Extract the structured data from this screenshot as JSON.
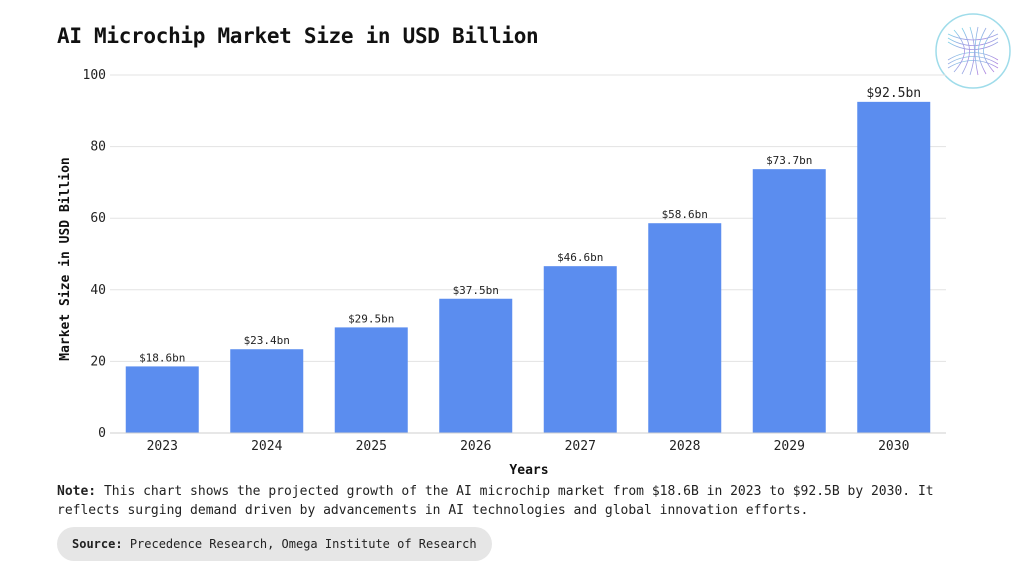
{
  "chart_data": {
    "type": "bar",
    "title": "AI Microchip Market Size in USD Billion",
    "xlabel": "Years",
    "ylabel": "Market Size in USD Billion",
    "categories": [
      "2023",
      "2024",
      "2025",
      "2026",
      "2027",
      "2028",
      "2029",
      "2030"
    ],
    "values": [
      18.6,
      23.4,
      29.5,
      37.5,
      46.6,
      58.6,
      73.7,
      92.5
    ],
    "data_labels": [
      "$18.6bn",
      "$23.4bn",
      "$29.5bn",
      "$37.5bn",
      "$46.6bn",
      "$58.6bn",
      "$73.7bn",
      "$92.5bn"
    ],
    "ylim": [
      0,
      100
    ],
    "yticks": [
      "0",
      "20",
      "40",
      "60",
      "80",
      "100"
    ],
    "grid": true,
    "bar_color": "#5b8def"
  },
  "note": {
    "label": "Note:",
    "text": "This chart shows the projected growth of the AI microchip market from $18.6B in 2023 to $92.5B by 2030. It reflects surging demand driven by advancements in AI technologies and global innovation efforts."
  },
  "source": {
    "label": "Source:",
    "text": "Precedence Research, Omega Institute of Research"
  },
  "logo": {
    "icon": "hyperboloid-wireframe-logo"
  }
}
